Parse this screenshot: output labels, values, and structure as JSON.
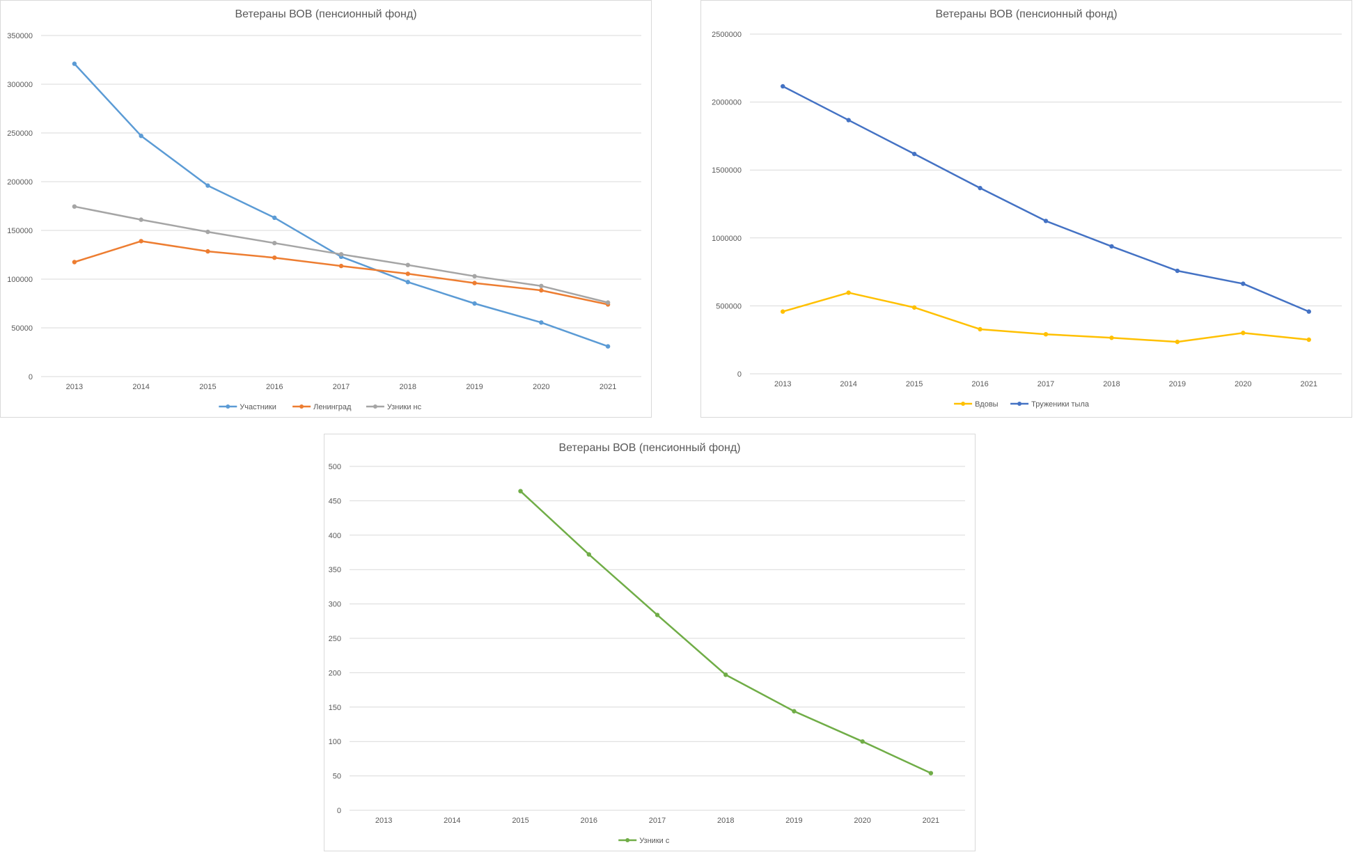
{
  "chart_data": [
    {
      "type": "line",
      "title": "Ветераны ВОВ (пенсионный фонд)",
      "categories": [
        "2013",
        "2014",
        "2015",
        "2016",
        "2017",
        "2018",
        "2019",
        "2020",
        "2021"
      ],
      "ylim": [
        0,
        350000
      ],
      "yticks": [
        0,
        50000,
        100000,
        150000,
        200000,
        250000,
        300000,
        350000
      ],
      "grid": true,
      "legend": "bottom",
      "series": [
        {
          "name": "Участники",
          "color": "#5b9bd5",
          "values": [
            321000,
            247000,
            196000,
            163000,
            123000,
            97000,
            75000,
            55500,
            31000
          ]
        },
        {
          "name": "Ленинград",
          "color": "#ed7d31",
          "values": [
            117500,
            139000,
            128500,
            122000,
            113500,
            105500,
            96000,
            88500,
            74000
          ]
        },
        {
          "name": "Узники нс",
          "color": "#a5a5a5",
          "values": [
            174500,
            161000,
            148500,
            137000,
            125500,
            114500,
            103000,
            93000,
            76000
          ]
        }
      ]
    },
    {
      "type": "line",
      "title": "Ветераны ВОВ (пенсионный фонд)",
      "categories": [
        "2013",
        "2014",
        "2015",
        "2016",
        "2017",
        "2018",
        "2019",
        "2020",
        "2021"
      ],
      "ylim": [
        0,
        2500000
      ],
      "yticks": [
        0,
        500000,
        1000000,
        1500000,
        2000000,
        2500000
      ],
      "grid": true,
      "legend": "bottom",
      "series": [
        {
          "name": "Вдовы",
          "color": "#ffc000",
          "values": [
            458000,
            597000,
            488000,
            328000,
            291000,
            265000,
            235000,
            301000,
            251000
          ]
        },
        {
          "name": "Труженики тыла",
          "color": "#4472c4",
          "values": [
            2116000,
            1867000,
            1618000,
            1367000,
            1125000,
            938000,
            758000,
            663000,
            458000
          ]
        }
      ]
    },
    {
      "type": "line",
      "title": "Ветераны ВОВ (пенсионный фонд)",
      "categories": [
        "2013",
        "2014",
        "2015",
        "2016",
        "2017",
        "2018",
        "2019",
        "2020",
        "2021"
      ],
      "ylim": [
        0,
        500
      ],
      "yticks": [
        0,
        50,
        100,
        150,
        200,
        250,
        300,
        350,
        400,
        450,
        500
      ],
      "grid": true,
      "legend": "bottom",
      "series": [
        {
          "name": "Узники с",
          "color": "#70ad47",
          "values": [
            null,
            null,
            464,
            372,
            284,
            197,
            144,
            100,
            54
          ]
        }
      ]
    }
  ]
}
